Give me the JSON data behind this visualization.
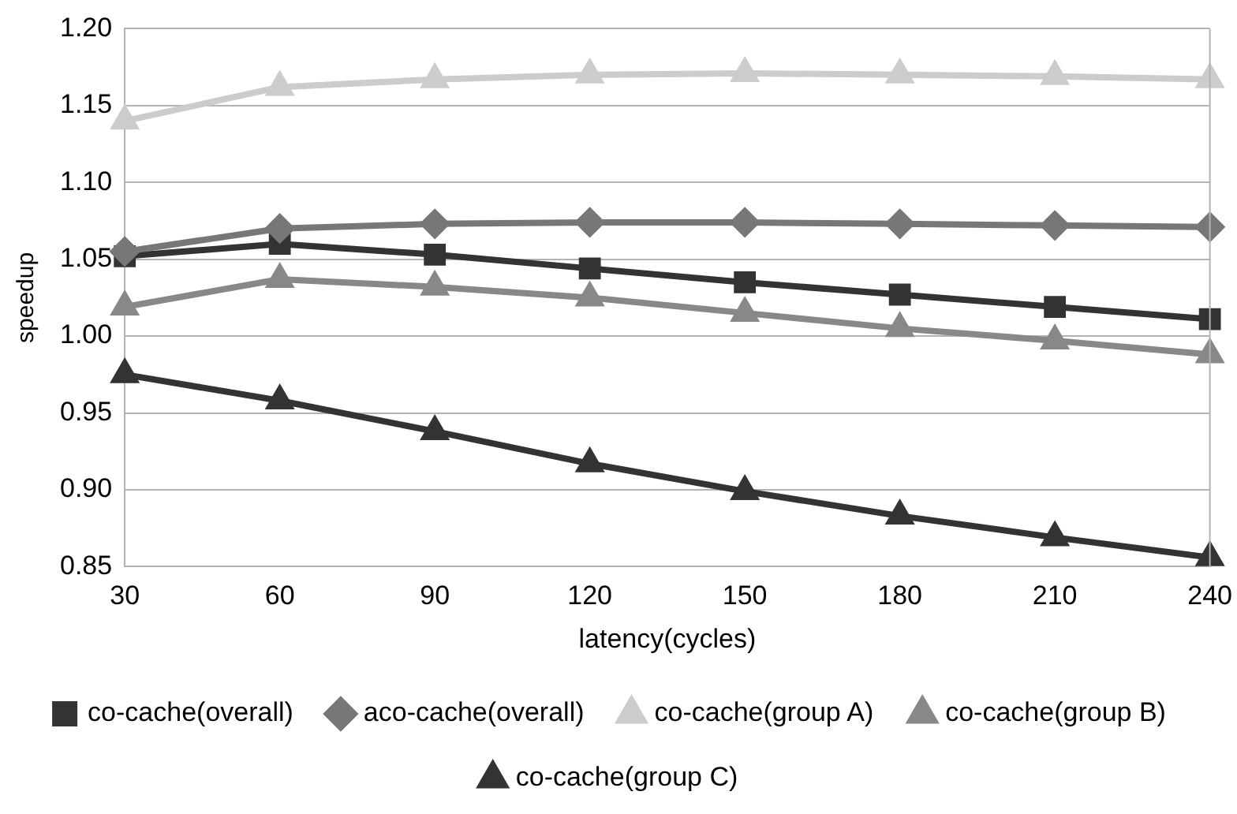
{
  "chart_data": {
    "type": "line",
    "xlabel": "latency(cycles)",
    "ylabel": "speedup",
    "categories": [
      "30",
      "60",
      "90",
      "120",
      "150",
      "180",
      "210",
      "240"
    ],
    "series": [
      {
        "name": "co-cache(overall)",
        "color": "#333333",
        "marker": "square",
        "values": [
          1.052,
          1.06,
          1.053,
          1.044,
          1.035,
          1.027,
          1.019,
          1.011
        ]
      },
      {
        "name": "aco-cache(overall)",
        "color": "#777777",
        "marker": "diamond",
        "values": [
          1.055,
          1.07,
          1.073,
          1.074,
          1.074,
          1.073,
          1.072,
          1.071
        ]
      },
      {
        "name": "co-cache(group A)",
        "color": "#cccccc",
        "marker": "triangle",
        "values": [
          1.14,
          1.162,
          1.167,
          1.17,
          1.171,
          1.17,
          1.169,
          1.167
        ]
      },
      {
        "name": "co-cache(group B)",
        "color": "#888888",
        "marker": "triangle",
        "values": [
          1.019,
          1.037,
          1.032,
          1.025,
          1.015,
          1.005,
          0.997,
          0.988
        ]
      },
      {
        "name": "co-cache(group C)",
        "color": "#333333",
        "marker": "triangle",
        "values": [
          0.975,
          0.958,
          0.938,
          0.917,
          0.899,
          0.883,
          0.869,
          0.856
        ]
      }
    ],
    "ylim": [
      0.85,
      1.2
    ],
    "yticks": [
      {
        "value": 0.85,
        "label": "0.85"
      },
      {
        "value": 0.9,
        "label": "0.90"
      },
      {
        "value": 0.95,
        "label": "0.95"
      },
      {
        "value": 1.0,
        "label": "1.00"
      },
      {
        "value": 1.05,
        "label": "1.05"
      },
      {
        "value": 1.1,
        "label": "1.10"
      },
      {
        "value": 1.15,
        "label": "1.15"
      },
      {
        "value": 1.2,
        "label": "1.20"
      }
    ],
    "grid": "y",
    "legend": "bottom"
  }
}
